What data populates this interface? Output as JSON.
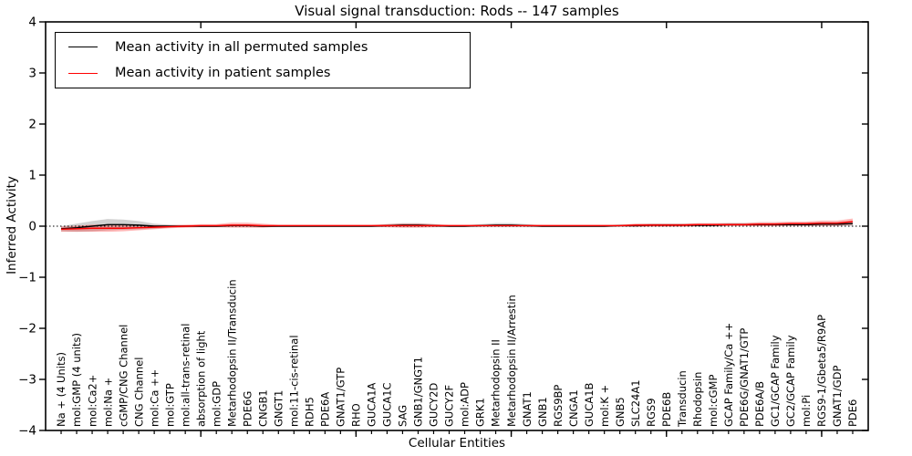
{
  "title": "Visual signal transduction: Rods -- 147 samples",
  "axes": {
    "x_label": "Cellular Entities",
    "y_label": "Inferred Activity",
    "y_ticks": [
      4,
      3,
      2,
      1,
      0,
      -1,
      -2,
      -3,
      -4
    ],
    "y_range": [
      -4,
      4
    ]
  },
  "legend": {
    "position": "upper left",
    "entries": [
      {
        "label": "Mean activity in all permuted samples",
        "color": "#000000"
      },
      {
        "label": "Mean activity in patient samples",
        "color": "#ff0000"
      }
    ]
  },
  "colors": {
    "permuted_line": "#000000",
    "patient_line": "#ff0000",
    "permuted_band": "rgba(0,0,0,0.18)",
    "patient_band": "rgba(255,0,0,0.28)",
    "frame": "#000000",
    "background": "#ffffff"
  },
  "chart_data": {
    "type": "line",
    "title": "Visual signal transduction: Rods -- 147 samples",
    "xlabel": "Cellular Entities",
    "ylabel": "Inferred Activity",
    "ylim": [
      -4,
      4
    ],
    "grid": false,
    "zero_line": "dotted",
    "legend_position": "upper left",
    "x_major_ticks": [
      10,
      20,
      30,
      40,
      50
    ],
    "categories": [
      "Na + (4 Units)",
      "mol:GMP (4 units)",
      "mol:Ca2+",
      "mol:Na +",
      "cGMP/CNG Channel",
      "CNG Channel",
      "mol:Ca ++",
      "mol:GTP",
      "mol:all-trans-retinal",
      "absorption of light",
      "mol:GDP",
      "Metarhodopsin II/Transducin",
      "PDE6G",
      "CNGB1",
      "GNGT1",
      "mol:11-cis-retinal",
      "RDH5",
      "PDE6A",
      "GNAT1/GTP",
      "RHO",
      "GUCA1A",
      "GUCA1C",
      "SAG",
      "GNB1/GNGT1",
      "GUCY2D",
      "GUCY2F",
      "mol:ADP",
      "GRK1",
      "Metarhodopsin II",
      "Metarhodopsin II/Arrestin",
      "GNAT1",
      "GNB1",
      "RGS9BP",
      "CNGA1",
      "GUCA1B",
      "mol:K +",
      "GNB5",
      "SLC24A1",
      "RGS9",
      "PDE6B",
      "Transducin",
      "Rhodopsin",
      "mol:cGMP",
      "GCAP Family/Ca ++",
      "PDE6G/GNAT1/GTP",
      "PDE6A/B",
      "GC1/GCAP Family",
      "GC2/GCAP Family",
      "mol:Pi",
      "RGS9-1/Gbeta5/R9AP",
      "GNAT1/GDP",
      "PDE6"
    ],
    "series": [
      {
        "name": "Mean activity in all permuted samples",
        "color": "#000000",
        "band_color": "rgba(0,0,0,0.18)",
        "values": [
          -0.05,
          -0.03,
          0.0,
          0.03,
          0.03,
          0.02,
          0.0,
          0.0,
          0.0,
          0.0,
          0.0,
          0.01,
          0.01,
          0.0,
          0.0,
          0.0,
          0.0,
          0.0,
          0.0,
          0.0,
          0.0,
          0.01,
          0.02,
          0.02,
          0.01,
          0.0,
          0.0,
          0.01,
          0.02,
          0.02,
          0.01,
          0.0,
          0.0,
          0.0,
          0.0,
          0.0,
          0.01,
          0.01,
          0.02,
          0.02,
          0.02,
          0.02,
          0.02,
          0.03,
          0.03,
          0.03,
          0.03,
          0.03,
          0.03,
          0.04,
          0.04,
          0.05
        ],
        "band_halfwidth": [
          0.05,
          0.08,
          0.1,
          0.11,
          0.1,
          0.08,
          0.05,
          0.03,
          0.02,
          0.02,
          0.02,
          0.02,
          0.02,
          0.02,
          0.02,
          0.02,
          0.02,
          0.02,
          0.02,
          0.02,
          0.02,
          0.03,
          0.04,
          0.04,
          0.03,
          0.02,
          0.02,
          0.03,
          0.04,
          0.04,
          0.03,
          0.02,
          0.02,
          0.02,
          0.02,
          0.02,
          0.02,
          0.03,
          0.03,
          0.03,
          0.03,
          0.03,
          0.03,
          0.03,
          0.03,
          0.03,
          0.03,
          0.03,
          0.03,
          0.04,
          0.04,
          0.05
        ]
      },
      {
        "name": "Mean activity in patient samples",
        "color": "#ff0000",
        "band_color": "rgba(255,0,0,0.28)",
        "values": [
          -0.06,
          -0.05,
          -0.04,
          -0.04,
          -0.04,
          -0.03,
          -0.02,
          -0.01,
          0.0,
          0.01,
          0.01,
          0.02,
          0.02,
          0.01,
          0.01,
          0.01,
          0.01,
          0.01,
          0.01,
          0.01,
          0.01,
          0.01,
          0.01,
          0.01,
          0.01,
          0.01,
          0.01,
          0.01,
          0.01,
          0.01,
          0.01,
          0.01,
          0.01,
          0.01,
          0.01,
          0.01,
          0.01,
          0.02,
          0.02,
          0.02,
          0.02,
          0.03,
          0.03,
          0.03,
          0.03,
          0.04,
          0.04,
          0.05,
          0.05,
          0.06,
          0.06,
          0.09
        ],
        "band_halfwidth": [
          0.05,
          0.06,
          0.07,
          0.07,
          0.06,
          0.05,
          0.04,
          0.03,
          0.03,
          0.03,
          0.03,
          0.05,
          0.05,
          0.04,
          0.02,
          0.02,
          0.02,
          0.02,
          0.02,
          0.02,
          0.02,
          0.03,
          0.04,
          0.04,
          0.03,
          0.02,
          0.02,
          0.02,
          0.02,
          0.02,
          0.02,
          0.02,
          0.02,
          0.02,
          0.02,
          0.02,
          0.02,
          0.03,
          0.03,
          0.03,
          0.03,
          0.03,
          0.03,
          0.03,
          0.03,
          0.04,
          0.04,
          0.04,
          0.04,
          0.05,
          0.05,
          0.06
        ]
      }
    ]
  }
}
